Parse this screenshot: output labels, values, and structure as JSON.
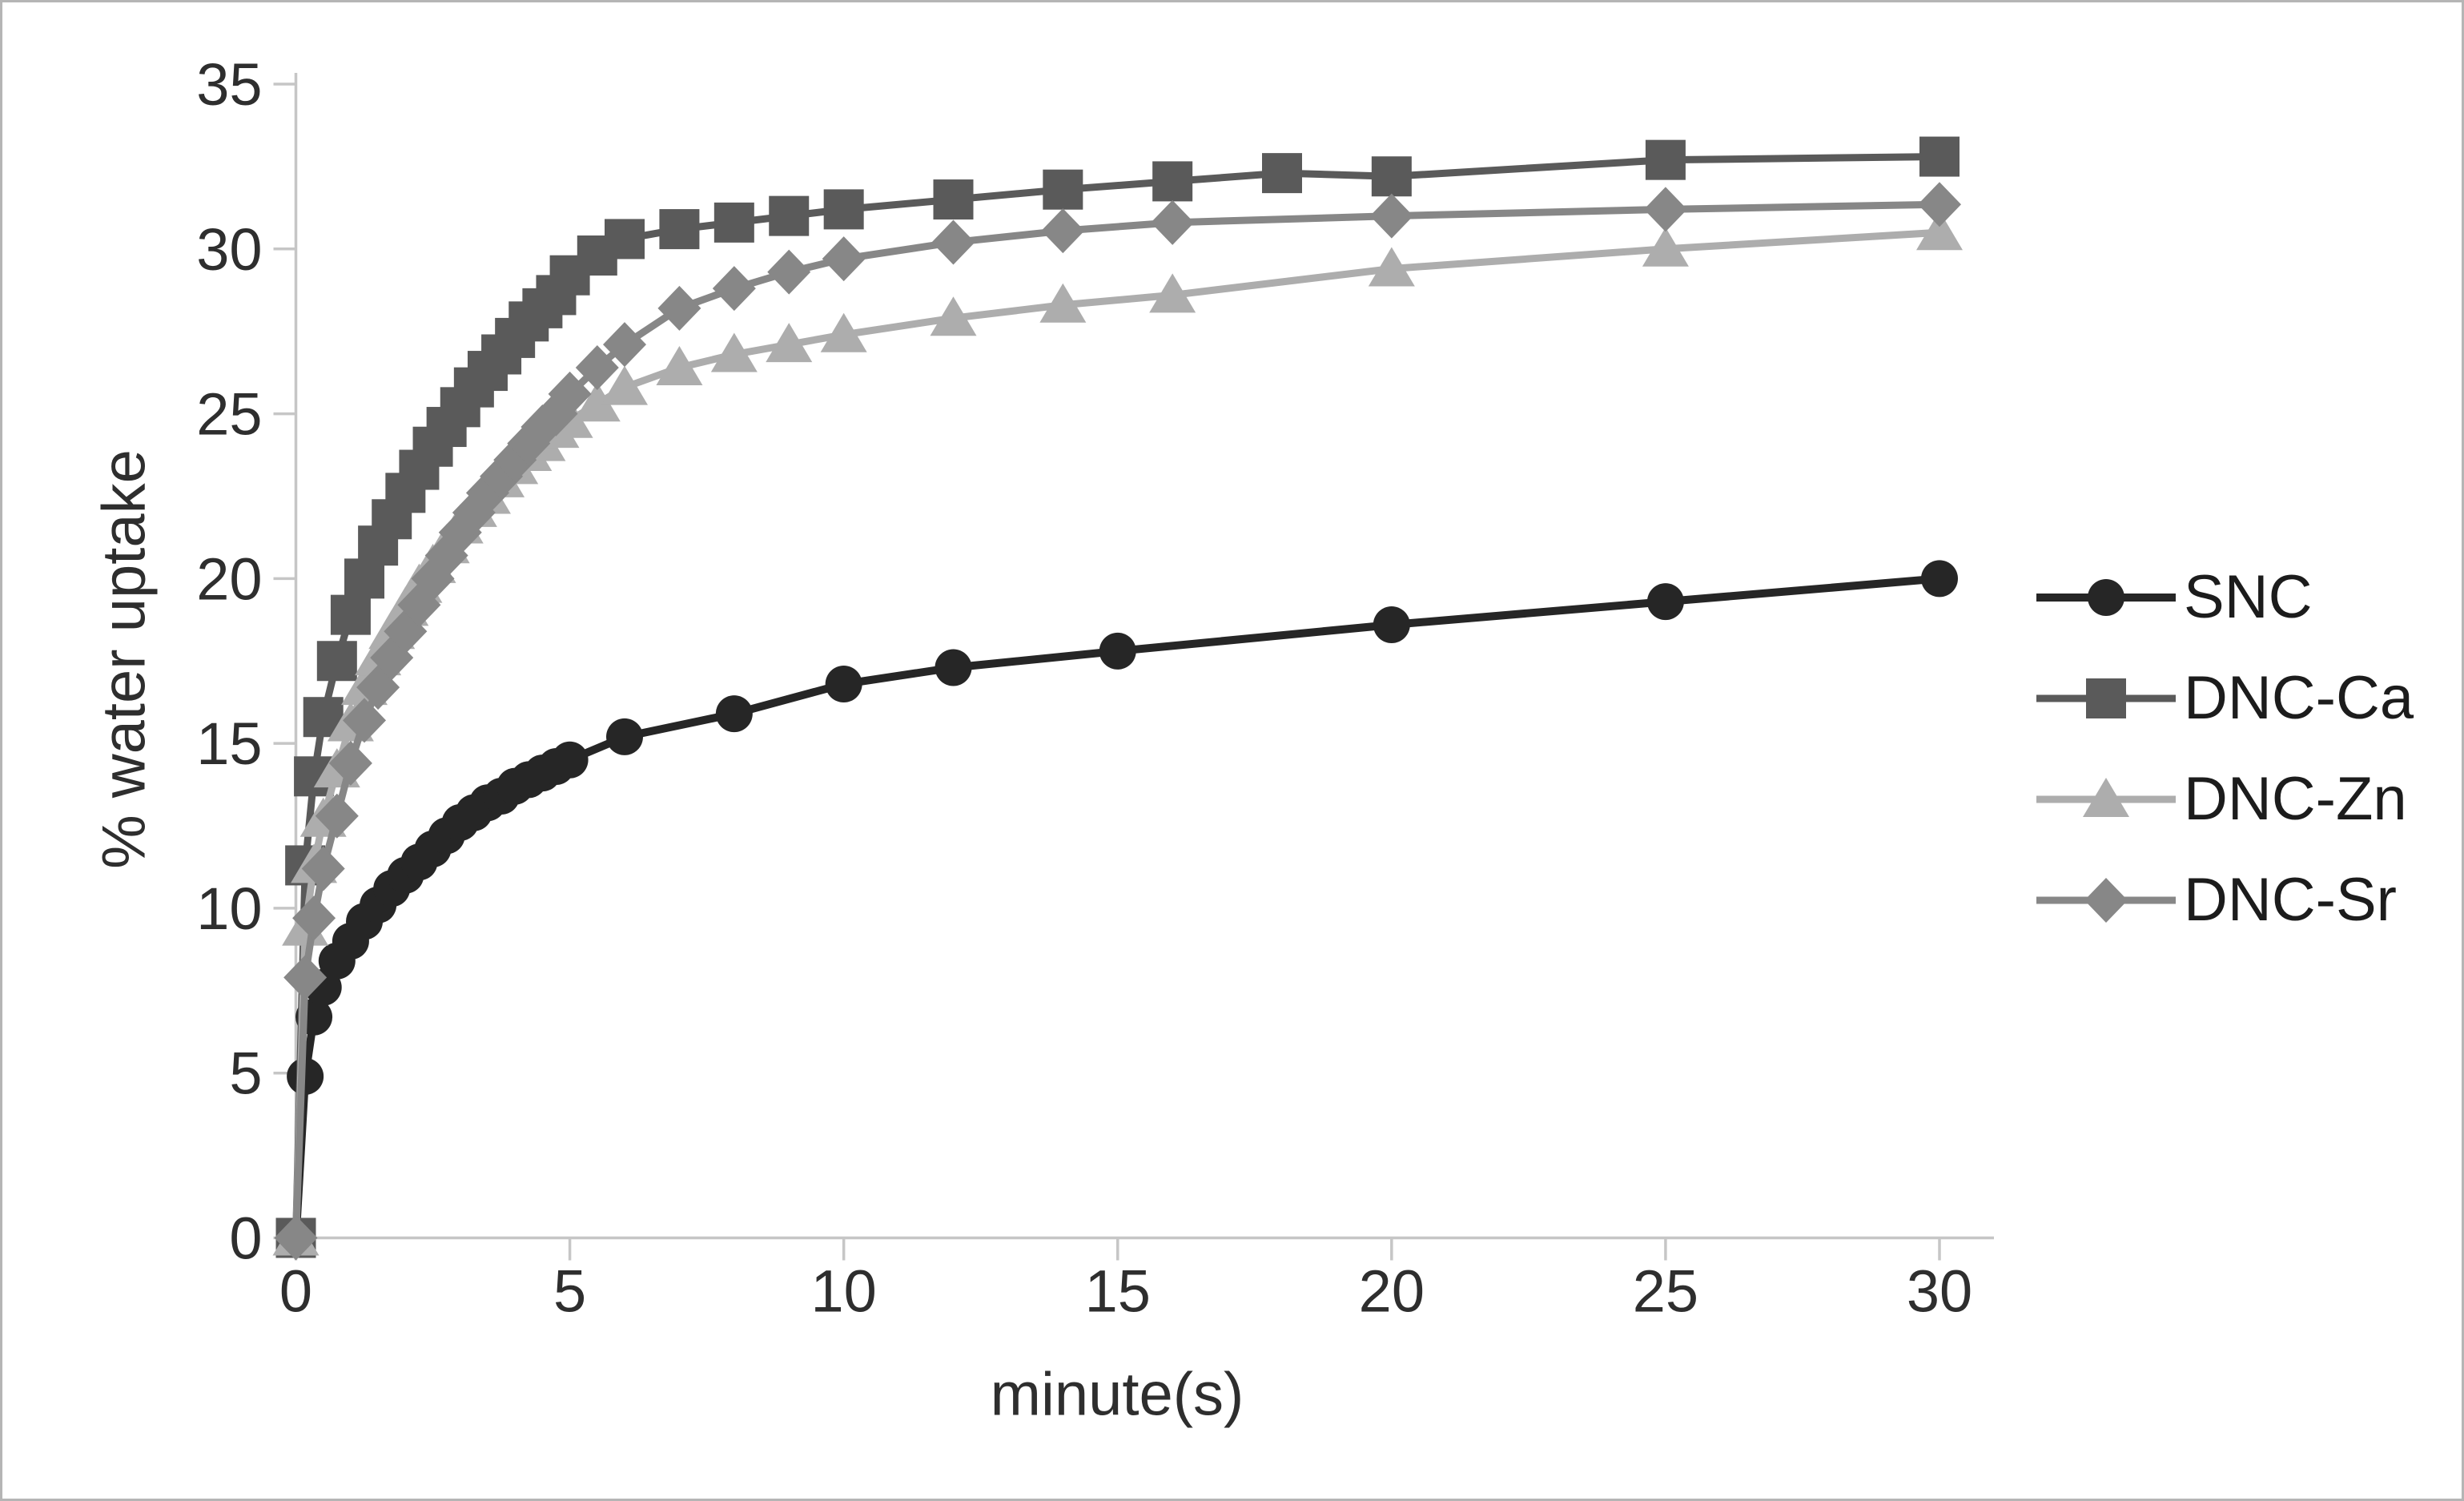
{
  "figure": {
    "background": "#ffffff",
    "border_color": "#b5b5b5"
  },
  "axes": {
    "axis_line_color": "#c6c6c6",
    "tick_color": "#c6c6c6",
    "tick_label_color": "#2e2e2e"
  },
  "chart_data": {
    "type": "line",
    "title": "",
    "xlabel": "minute(s)",
    "ylabel": "% water uptake",
    "xlim": [
      0,
      30
    ],
    "ylim": [
      0,
      35
    ],
    "xticks": [
      0,
      5,
      10,
      15,
      20,
      25,
      30
    ],
    "yticks": [
      0,
      5,
      10,
      15,
      20,
      25,
      30,
      35
    ],
    "grid": false,
    "legend_position": "right-outside",
    "series": [
      {
        "name": "SNC",
        "marker": "circle",
        "color": "#262626",
        "line_width": 10,
        "x": [
          0,
          0.17,
          0.33,
          0.5,
          0.75,
          1,
          1.25,
          1.5,
          1.75,
          2,
          2.25,
          2.5,
          2.75,
          3,
          3.25,
          3.5,
          3.75,
          4,
          4.25,
          4.5,
          4.75,
          5,
          6,
          8,
          10,
          12,
          15,
          20,
          25,
          30
        ],
        "y": [
          0,
          4.9,
          6.7,
          7.6,
          8.4,
          9.0,
          9.6,
          10.1,
          10.6,
          11.0,
          11.4,
          11.8,
          12.2,
          12.6,
          12.9,
          13.2,
          13.4,
          13.7,
          13.9,
          14.1,
          14.3,
          14.5,
          15.2,
          15.9,
          16.8,
          17.3,
          17.8,
          18.6,
          19.3,
          20.0
        ]
      },
      {
        "name": "DNC-Ca",
        "marker": "square",
        "color": "#5a5a5a",
        "line_width": 9,
        "x": [
          0,
          0.17,
          0.33,
          0.5,
          0.75,
          1,
          1.25,
          1.5,
          1.75,
          2,
          2.25,
          2.5,
          2.75,
          3,
          3.25,
          3.5,
          3.75,
          4,
          4.25,
          4.5,
          4.75,
          5,
          5.5,
          6,
          7,
          8,
          9,
          10,
          12,
          14,
          16,
          18,
          20,
          25,
          30
        ],
        "y": [
          0,
          11.3,
          14.0,
          15.8,
          17.5,
          18.9,
          20.0,
          21.0,
          21.8,
          22.6,
          23.3,
          24.0,
          24.6,
          25.2,
          25.8,
          26.3,
          26.8,
          27.3,
          27.8,
          28.2,
          28.6,
          29.2,
          29.8,
          30.3,
          30.6,
          30.8,
          31.0,
          31.2,
          31.5,
          31.8,
          32.05,
          32.3,
          32.2,
          32.7,
          32.8
        ]
      },
      {
        "name": "DNC-Zn",
        "marker": "triangle",
        "color": "#adadad",
        "line_width": 9,
        "x": [
          0,
          0.17,
          0.33,
          0.5,
          0.75,
          1,
          1.25,
          1.5,
          1.75,
          2,
          2.25,
          2.5,
          2.75,
          3,
          3.25,
          3.5,
          3.75,
          4,
          4.25,
          4.5,
          4.75,
          5,
          5.5,
          6,
          7,
          8,
          9,
          10,
          12,
          14,
          16,
          20,
          25,
          30
        ],
        "y": [
          0,
          9.4,
          11.3,
          12.7,
          14.2,
          15.6,
          16.7,
          17.6,
          18.4,
          19.1,
          19.8,
          20.4,
          21.0,
          21.6,
          22.1,
          22.5,
          23.0,
          23.4,
          23.8,
          24.1,
          24.5,
          24.8,
          25.3,
          25.8,
          26.4,
          26.8,
          27.1,
          27.4,
          27.9,
          28.3,
          28.6,
          29.4,
          30.0,
          30.5
        ]
      },
      {
        "name": "DNC-Sr",
        "marker": "diamond",
        "color": "#878787",
        "line_width": 9,
        "x": [
          0,
          0.17,
          0.33,
          0.5,
          0.75,
          1,
          1.25,
          1.5,
          1.75,
          2,
          2.25,
          2.5,
          2.75,
          3,
          3.25,
          3.5,
          3.75,
          4,
          4.25,
          4.5,
          4.75,
          5,
          5.5,
          6,
          7,
          8,
          9,
          10,
          12,
          14,
          16,
          20,
          25,
          30
        ],
        "y": [
          0,
          7.9,
          9.7,
          11.2,
          12.8,
          14.4,
          15.7,
          16.7,
          17.6,
          18.4,
          19.2,
          20.0,
          20.7,
          21.4,
          22.0,
          22.6,
          23.1,
          23.6,
          24.1,
          24.6,
          25.0,
          25.6,
          26.4,
          27.1,
          28.2,
          28.8,
          29.3,
          29.7,
          30.2,
          30.55,
          30.8,
          31.0,
          31.2,
          31.35
        ]
      }
    ]
  }
}
